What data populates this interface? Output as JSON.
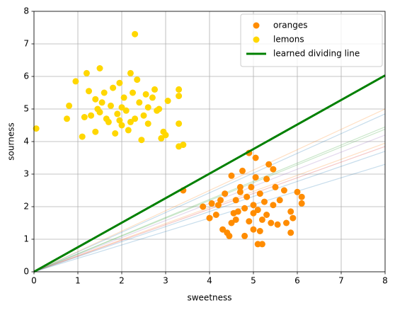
{
  "chart_data": {
    "type": "scatter",
    "xlabel": "sweetness",
    "ylabel": "sourness",
    "xlim": [
      0,
      8
    ],
    "ylim": [
      0,
      8
    ],
    "xticks": [
      0,
      1,
      2,
      3,
      4,
      5,
      6,
      7,
      8
    ],
    "yticks": [
      0,
      1,
      2,
      3,
      4,
      5,
      6,
      7,
      8
    ],
    "grid": true,
    "legend": "upper right",
    "series": [
      {
        "name": "oranges",
        "type": "scatter",
        "color": "#ff8c00",
        "x": [
          3.4,
          3.85,
          4.0,
          4.05,
          4.15,
          4.2,
          4.3,
          4.35,
          4.4,
          4.45,
          4.5,
          4.5,
          4.55,
          4.6,
          4.65,
          4.7,
          4.75,
          4.8,
          4.8,
          4.85,
          4.9,
          4.9,
          4.95,
          5.0,
          5.0,
          5.05,
          5.05,
          5.1,
          5.1,
          5.15,
          5.2,
          5.2,
          5.25,
          5.3,
          5.3,
          5.35,
          5.4,
          5.45,
          5.45,
          5.5,
          5.55,
          5.6,
          5.7,
          5.75,
          5.85,
          5.85,
          5.9,
          6.0,
          6.1,
          6.1,
          4.25,
          4.6,
          5.0,
          5.15,
          4.7
        ],
        "values": [
          2.5,
          2.0,
          1.65,
          2.1,
          1.75,
          2.05,
          1.3,
          2.4,
          1.2,
          1.1,
          2.95,
          1.5,
          1.8,
          2.2,
          1.85,
          2.45,
          3.1,
          1.95,
          1.1,
          2.3,
          3.65,
          1.55,
          2.6,
          1.3,
          2.05,
          3.5,
          2.9,
          0.85,
          1.9,
          2.4,
          0.85,
          1.6,
          2.15,
          1.75,
          2.85,
          3.3,
          1.5,
          3.15,
          2.05,
          2.6,
          1.45,
          2.2,
          2.5,
          1.5,
          1.85,
          1.2,
          1.65,
          2.45,
          2.3,
          2.1,
          2.2,
          1.6,
          1.8,
          1.25,
          2.6
        ]
      },
      {
        "name": "lemons",
        "type": "scatter",
        "color": "#ffd700",
        "x": [
          0.05,
          0.75,
          0.8,
          0.95,
          1.1,
          1.15,
          1.2,
          1.25,
          1.3,
          1.4,
          1.4,
          1.5,
          1.5,
          1.55,
          1.6,
          1.7,
          1.75,
          1.8,
          1.85,
          1.9,
          1.95,
          2.0,
          2.05,
          2.1,
          2.15,
          2.2,
          2.25,
          2.3,
          2.3,
          2.35,
          2.4,
          2.45,
          2.5,
          2.55,
          2.6,
          2.7,
          2.75,
          2.8,
          2.9,
          2.95,
          3.0,
          3.05,
          3.3,
          3.3,
          3.3,
          3.3,
          3.4,
          2.0,
          1.65,
          2.6,
          2.2,
          1.95,
          2.85,
          1.45
        ],
        "values": [
          4.4,
          4.7,
          5.1,
          5.85,
          4.15,
          4.75,
          6.1,
          5.55,
          4.8,
          4.3,
          5.3,
          6.25,
          4.9,
          5.2,
          5.5,
          4.6,
          5.1,
          5.65,
          4.25,
          4.85,
          5.8,
          4.5,
          5.35,
          4.95,
          4.35,
          6.1,
          5.5,
          7.3,
          4.7,
          5.9,
          5.2,
          4.05,
          4.8,
          5.45,
          4.55,
          5.35,
          5.6,
          4.95,
          4.1,
          4.3,
          4.2,
          5.25,
          5.6,
          5.4,
          4.55,
          3.85,
          3.9,
          5.05,
          4.7,
          5.05,
          4.6,
          4.65,
          5.0,
          5.0
        ]
      },
      {
        "name": "learned dividing line",
        "type": "line",
        "color": "#008000",
        "x": [
          0,
          8
        ],
        "values": [
          0,
          6.03
        ]
      }
    ],
    "faint_lines": [
      {
        "color": "#ff7f0e",
        "alpha": 0.25,
        "x": [
          0,
          8
        ],
        "values": [
          0,
          5.0
        ]
      },
      {
        "color": "#1f77b4",
        "alpha": 0.25,
        "x": [
          0,
          8
        ],
        "values": [
          0,
          4.85
        ]
      },
      {
        "color": "#2ca02c",
        "alpha": 0.25,
        "x": [
          0,
          8
        ],
        "values": [
          0,
          4.45
        ]
      },
      {
        "color": "#2ca02c",
        "alpha": 0.25,
        "x": [
          0,
          8
        ],
        "values": [
          0,
          4.38
        ]
      },
      {
        "color": "#9467bd",
        "alpha": 0.25,
        "x": [
          0,
          8
        ],
        "values": [
          0,
          4.2
        ]
      },
      {
        "color": "#ff7f0e",
        "alpha": 0.25,
        "x": [
          0,
          8
        ],
        "values": [
          0,
          3.95
        ]
      },
      {
        "color": "#d62728",
        "alpha": 0.25,
        "x": [
          0,
          8
        ],
        "values": [
          0,
          3.85
        ]
      },
      {
        "color": "#1f77b4",
        "alpha": 0.25,
        "x": [
          0,
          8
        ],
        "values": [
          0,
          3.7
        ]
      },
      {
        "color": "#1f77b4",
        "alpha": 0.25,
        "x": [
          0,
          8
        ],
        "values": [
          0,
          3.3
        ]
      }
    ]
  }
}
